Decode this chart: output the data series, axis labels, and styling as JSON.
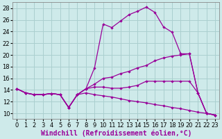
{
  "background_color": "#ceeaea",
  "grid_color": "#aacfcf",
  "line_color": "#990099",
  "xlabel": "Windchill (Refroidissement éolien,°C)",
  "xlabel_fontsize": 7.0,
  "tick_fontsize": 6.0,
  "xlim": [
    -0.5,
    23.5
  ],
  "ylim": [
    9,
    29
  ],
  "yticks": [
    10,
    12,
    14,
    16,
    18,
    20,
    22,
    24,
    26,
    28
  ],
  "xticks": [
    0,
    1,
    2,
    3,
    4,
    5,
    6,
    7,
    8,
    9,
    10,
    11,
    12,
    13,
    14,
    15,
    16,
    17,
    18,
    19,
    20,
    21,
    22,
    23
  ],
  "line1_x": [
    0,
    1,
    2,
    3,
    4,
    5,
    6,
    7,
    8,
    9,
    10,
    11,
    12,
    13,
    14,
    15,
    16,
    17,
    18,
    19,
    20,
    21,
    22,
    23
  ],
  "line1_y": [
    14.2,
    13.5,
    13.2,
    13.2,
    13.4,
    13.2,
    11.0,
    13.2,
    14.2,
    17.8,
    25.3,
    24.7,
    25.8,
    26.9,
    27.5,
    28.2,
    27.3,
    24.8,
    23.9,
    20.2,
    20.2,
    13.5,
    10.0,
    9.7
  ],
  "line2_x": [
    0,
    1,
    2,
    3,
    4,
    5,
    6,
    7,
    8,
    9,
    10,
    11,
    12,
    13,
    14,
    15,
    16,
    17,
    18,
    19,
    20,
    21,
    22,
    23
  ],
  "line2_y": [
    14.2,
    13.5,
    13.2,
    13.2,
    13.4,
    13.2,
    11.0,
    13.2,
    14.2,
    15.0,
    16.0,
    16.2,
    16.8,
    17.2,
    17.8,
    18.2,
    19.0,
    19.5,
    19.8,
    20.0,
    20.2,
    13.5,
    10.0,
    9.7
  ],
  "line3_x": [
    0,
    1,
    2,
    3,
    4,
    5,
    6,
    7,
    8,
    9,
    10,
    11,
    12,
    13,
    14,
    15,
    16,
    17,
    18,
    19,
    20,
    21,
    22,
    23
  ],
  "line3_y": [
    14.2,
    13.5,
    13.2,
    13.2,
    13.4,
    13.2,
    11.0,
    13.2,
    14.2,
    14.5,
    14.5,
    14.3,
    14.3,
    14.5,
    14.8,
    15.5,
    15.5,
    15.5,
    15.5,
    15.5,
    15.5,
    13.5,
    10.0,
    9.7
  ],
  "line4_x": [
    0,
    1,
    2,
    3,
    4,
    5,
    6,
    7,
    8,
    9,
    10,
    11,
    12,
    13,
    14,
    15,
    16,
    17,
    18,
    19,
    20,
    21,
    22,
    23
  ],
  "line4_y": [
    14.2,
    13.5,
    13.2,
    13.2,
    13.4,
    13.2,
    11.0,
    13.2,
    13.5,
    13.2,
    13.0,
    12.8,
    12.5,
    12.2,
    12.0,
    11.8,
    11.5,
    11.3,
    11.0,
    10.8,
    10.5,
    10.2,
    10.0,
    9.7
  ]
}
